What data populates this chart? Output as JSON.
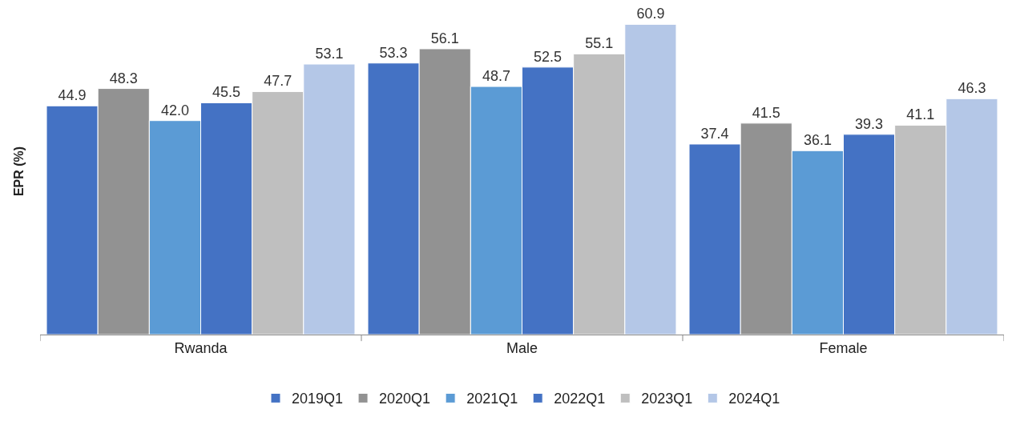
{
  "chart_data": {
    "type": "bar",
    "ylabel": "EPR (%)",
    "categories": [
      "Rwanda",
      "Male",
      "Female"
    ],
    "series": [
      {
        "name": "2019Q1",
        "color": "#4472c4",
        "values": [
          44.9,
          53.3,
          37.4
        ],
        "value_labels": [
          "44.9",
          "53.3",
          "37.4"
        ]
      },
      {
        "name": "2020Q1",
        "color": "#929292",
        "values": [
          48.3,
          56.1,
          41.5
        ],
        "value_labels": [
          "48.3",
          "56.1",
          "41.5"
        ]
      },
      {
        "name": "2021Q1",
        "color": "#5b9bd5",
        "values": [
          42.0,
          48.7,
          36.1
        ],
        "value_labels": [
          "42.0",
          "48.7",
          "36.1"
        ]
      },
      {
        "name": "2022Q1",
        "color": "#4472c4",
        "values": [
          45.5,
          52.5,
          39.3
        ],
        "value_labels": [
          "45.5",
          "52.5",
          "39.3"
        ]
      },
      {
        "name": "2023Q1",
        "color": "#bfbfbf",
        "values": [
          47.7,
          55.1,
          41.1
        ],
        "value_labels": [
          "47.7",
          "55.1",
          "41.1"
        ]
      },
      {
        "name": "2024Q1",
        "color": "#b4c7e7",
        "values": [
          53.1,
          60.9,
          46.3
        ],
        "value_labels": [
          "53.1",
          "60.9",
          "46.3"
        ]
      }
    ],
    "tick_labels": "x",
    "legend": "bottom"
  }
}
